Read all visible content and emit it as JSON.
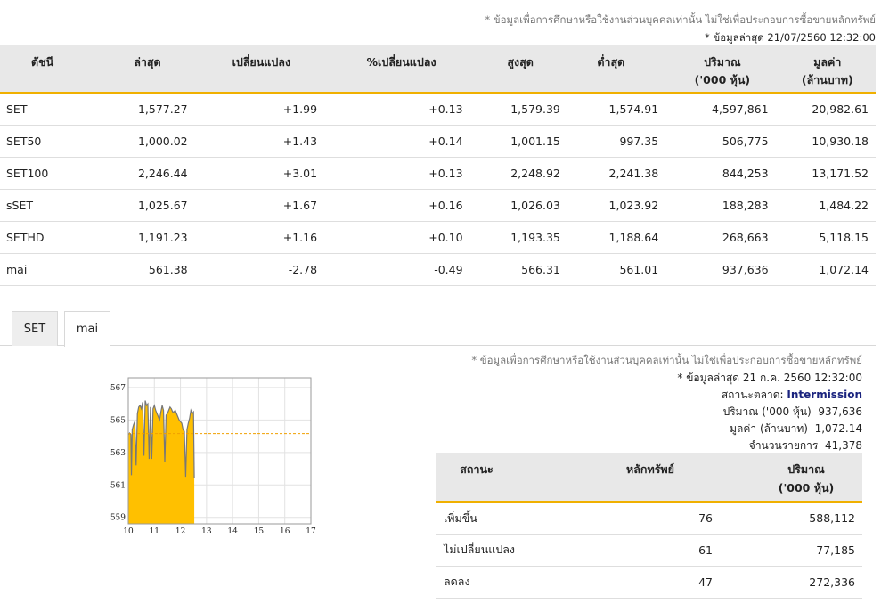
{
  "disclaimer": "* ข้อมูลเพื่อการศึกษาหรือใช้งานส่วนบุคคลเท่านั้น ไม่ใช่เพื่อประกอบการซื้อขายหลักทรัพย์",
  "last_update": "* ข้อมูลล่าสุด 21/07/2560 12:32:00",
  "index_table": {
    "headers": {
      "name": "ดัชนี",
      "last": "ล่าสุด",
      "change": "เปลี่ยนแปลง",
      "pct_change": "%เปลี่ยนแปลง",
      "high": "สูงสุด",
      "low": "ต่ำสุด",
      "volume_l1": "ปริมาณ",
      "volume_l2": "('000 หุ้น)",
      "value_l1": "มูลค่า",
      "value_l2": "(ล้านบาท)"
    },
    "rows": [
      {
        "name": "SET",
        "last": "1,577.27",
        "change": "+1.99",
        "pct": "+0.13",
        "high": "1,579.39",
        "low": "1,574.91",
        "volume": "4,597,861",
        "value": "20,982.61"
      },
      {
        "name": "SET50",
        "last": "1,000.02",
        "change": "+1.43",
        "pct": "+0.14",
        "high": "1,001.15",
        "low": "997.35",
        "volume": "506,775",
        "value": "10,930.18"
      },
      {
        "name": "SET100",
        "last": "2,246.44",
        "change": "+3.01",
        "pct": "+0.13",
        "high": "2,248.92",
        "low": "2,241.38",
        "volume": "844,253",
        "value": "13,171.52"
      },
      {
        "name": "sSET",
        "last": "1,025.67",
        "change": "+1.67",
        "pct": "+0.16",
        "high": "1,026.03",
        "low": "1,023.92",
        "volume": "188,283",
        "value": "1,484.22"
      },
      {
        "name": "SETHD",
        "last": "1,191.23",
        "change": "+1.16",
        "pct": "+0.10",
        "high": "1,193.35",
        "low": "1,188.64",
        "volume": "268,663",
        "value": "5,118.15"
      },
      {
        "name": "mai",
        "last": "561.38",
        "change": "-2.78",
        "pct": "-0.49",
        "high": "566.31",
        "low": "561.01",
        "volume": "937,636",
        "value": "1,072.14"
      }
    ]
  },
  "tabs": [
    {
      "label": "SET",
      "active": false
    },
    {
      "label": "mai",
      "active": true
    }
  ],
  "info": {
    "disclaimer": "* ข้อมูลเพื่อการศึกษาหรือใช้งานส่วนบุคคลเท่านั้น ไม่ใช่เพื่อประกอบการซื้อขายหลักทรัพย์",
    "last_update": "* ข้อมูลล่าสุด 21 ก.ค. 2560 12:32:00",
    "status_label": "สถานะตลาด:",
    "status_value": "Intermission",
    "volume_label": "ปริมาณ ('000 หุ้น)",
    "volume_value": "937,636",
    "value_label": "มูลค่า (ล้านบาท)",
    "value_value": "1,072.14",
    "trades_label": "จำนวนรายการ",
    "trades_value": "41,378"
  },
  "stats_table": {
    "headers": {
      "status": "สถานะ",
      "securities": "หลักทรัพย์",
      "volume_l1": "ปริมาณ",
      "volume_l2": "('000 หุ้น)"
    },
    "rows": [
      {
        "label": "เพิ่มขึ้น",
        "count": "76",
        "volume": "588,112",
        "tone": "up"
      },
      {
        "label": "ไม่เปลี่ยนแปลง",
        "count": "61",
        "volume": "77,185",
        "tone": "flat"
      },
      {
        "label": "ลดลง",
        "count": "47",
        "volume": "272,336",
        "tone": "down"
      }
    ]
  },
  "colors": {
    "accent": "#f0b000",
    "up": "#1a9a1a",
    "down": "#d02020",
    "link": "#2266aa",
    "status": "#1a237e",
    "chart_fill": "#ffc000",
    "chart_line": "#777777",
    "prev_close_line": "#f0a000"
  },
  "chart_data": {
    "type": "area",
    "y_ticks": [
      "567",
      "565",
      "563",
      "561",
      "559"
    ],
    "x_ticks": [
      "10",
      "11",
      "12",
      "13",
      "14",
      "15",
      "16",
      "17"
    ],
    "ylim": [
      558.6,
      567.6
    ],
    "xlim": [
      10,
      17
    ],
    "prev_close": 564.16,
    "x": [
      10.0,
      10.05,
      10.1,
      10.12,
      10.15,
      10.2,
      10.25,
      10.3,
      10.35,
      10.4,
      10.45,
      10.5,
      10.55,
      10.6,
      10.65,
      10.7,
      10.75,
      10.8,
      10.85,
      10.9,
      10.95,
      11.0,
      11.05,
      11.1,
      11.15,
      11.2,
      11.25,
      11.3,
      11.35,
      11.4,
      11.45,
      11.5,
      11.55,
      11.6,
      11.65,
      11.7,
      11.75,
      11.8,
      11.85,
      11.9,
      11.95,
      12.0,
      12.05,
      12.1,
      12.15,
      12.2,
      12.25,
      12.3,
      12.35,
      12.4,
      12.45,
      12.5,
      12.53
    ],
    "y": [
      564.1,
      564.2,
      564.1,
      561.6,
      564.4,
      564.7,
      564.9,
      562.2,
      565.4,
      565.8,
      565.9,
      565.7,
      566.1,
      562.8,
      566.2,
      565.9,
      566.0,
      562.6,
      565.8,
      562.6,
      565.7,
      565.9,
      565.6,
      565.4,
      565.2,
      565.0,
      565.5,
      565.9,
      565.6,
      562.4,
      565.3,
      565.4,
      565.6,
      565.8,
      565.7,
      565.5,
      565.5,
      565.6,
      565.4,
      565.2,
      565.0,
      564.9,
      564.8,
      564.4,
      564.3,
      561.5,
      564.4,
      564.8,
      565.1,
      565.6,
      565.4,
      565.5,
      561.4
    ]
  }
}
